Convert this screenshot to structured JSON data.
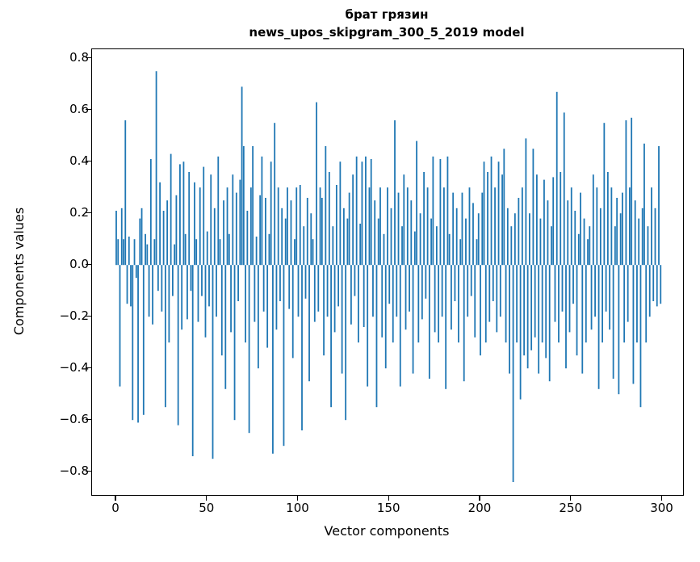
{
  "figure": {
    "title_line1": "брат грязин",
    "title_line2": "news_upos_skipgram_300_5_2019 model",
    "xlabel": "Vector components",
    "ylabel": "Components values",
    "bar_color": "#1f77b4",
    "background": "#ffffff"
  },
  "chart_data": {
    "type": "bar",
    "title": "брат грязин — news_upos_skipgram_300_5_2019 model",
    "xlabel": "Vector components",
    "ylabel": "Components values",
    "grid": false,
    "legend": null,
    "n_components": 300,
    "xlim": [
      -13.3,
      311.3
    ],
    "ylim": [
      -0.89,
      0.835
    ],
    "x_ticks": [
      0,
      50,
      100,
      150,
      200,
      250,
      300
    ],
    "x_tick_labels": [
      "0",
      "50",
      "100",
      "150",
      "200",
      "250",
      "300"
    ],
    "y_ticks": [
      0.8,
      0.6,
      0.4,
      0.2,
      0.0,
      -0.2,
      -0.4,
      -0.6,
      -0.8
    ],
    "y_tick_labels": [
      "0.8",
      "0.6",
      "0.4",
      "0.2",
      "0.0",
      "−0.2",
      "−0.4",
      "−0.6",
      "−0.8"
    ],
    "values": [
      0.21,
      0.1,
      -0.47,
      0.22,
      0.1,
      0.56,
      -0.15,
      0.11,
      -0.16,
      -0.6,
      0.1,
      -0.05,
      -0.61,
      0.18,
      0.22,
      -0.58,
      0.12,
      0.08,
      -0.2,
      0.41,
      -0.23,
      0.1,
      0.75,
      -0.1,
      0.32,
      -0.18,
      0.21,
      -0.55,
      0.25,
      -0.3,
      0.43,
      -0.12,
      0.08,
      0.27,
      -0.62,
      0.39,
      -0.25,
      0.4,
      0.12,
      -0.21,
      0.36,
      -0.1,
      -0.74,
      0.32,
      0.1,
      -0.22,
      0.3,
      -0.12,
      0.38,
      -0.28,
      0.13,
      -0.16,
      0.35,
      -0.75,
      0.22,
      -0.2,
      0.42,
      0.1,
      -0.35,
      0.25,
      -0.48,
      0.3,
      0.12,
      -0.26,
      0.35,
      -0.6,
      0.28,
      -0.14,
      0.33,
      0.69,
      0.46,
      -0.3,
      0.21,
      -0.65,
      0.3,
      0.46,
      -0.22,
      0.11,
      -0.4,
      0.27,
      0.42,
      -0.18,
      0.26,
      -0.32,
      0.12,
      0.4,
      -0.73,
      0.55,
      -0.25,
      0.3,
      -0.14,
      0.22,
      -0.7,
      0.18,
      0.3,
      -0.17,
      0.25,
      -0.36,
      0.1,
      0.3,
      -0.2,
      0.31,
      -0.64,
      0.15,
      -0.13,
      0.26,
      -0.45,
      0.2,
      0.1,
      -0.22,
      0.63,
      -0.18,
      0.3,
      0.26,
      -0.35,
      0.46,
      -0.2,
      0.36,
      -0.55,
      0.15,
      -0.26,
      0.31,
      -0.16,
      0.4,
      -0.42,
      0.22,
      -0.6,
      0.18,
      0.28,
      -0.23,
      0.35,
      -0.12,
      0.42,
      -0.3,
      0.16,
      0.4,
      -0.24,
      0.42,
      -0.47,
      0.3,
      0.41,
      -0.2,
      0.25,
      -0.55,
      0.18,
      0.3,
      -0.28,
      0.12,
      -0.4,
      0.3,
      -0.15,
      0.22,
      -0.3,
      0.56,
      -0.2,
      0.28,
      -0.47,
      0.15,
      0.35,
      -0.25,
      0.3,
      -0.18,
      0.25,
      -0.42,
      0.13,
      0.48,
      -0.3,
      0.2,
      -0.21,
      0.36,
      -0.13,
      0.3,
      -0.44,
      0.18,
      0.42,
      -0.26,
      0.15,
      -0.3,
      0.41,
      -0.2,
      0.3,
      -0.48,
      0.42,
      0.12,
      -0.25,
      0.28,
      -0.14,
      0.22,
      -0.3,
      0.1,
      0.28,
      -0.45,
      0.18,
      -0.2,
      0.3,
      -0.12,
      0.24,
      -0.28,
      0.1,
      0.2,
      -0.35,
      0.28,
      0.4,
      -0.3,
      0.36,
      -0.22,
      0.42,
      -0.14,
      0.3,
      -0.26,
      0.4,
      -0.2,
      0.35,
      0.45,
      -0.3,
      0.22,
      -0.42,
      0.15,
      -0.84,
      0.2,
      -0.3,
      0.26,
      -0.52,
      0.3,
      -0.35,
      0.49,
      -0.4,
      0.2,
      -0.33,
      0.45,
      -0.28,
      0.35,
      -0.42,
      0.18,
      -0.3,
      0.33,
      -0.36,
      0.25,
      -0.45,
      0.15,
      0.34,
      -0.22,
      0.67,
      -0.3,
      0.36,
      -0.18,
      0.59,
      -0.4,
      0.25,
      -0.26,
      0.3,
      -0.15,
      0.21,
      -0.35,
      0.12,
      0.28,
      -0.42,
      0.18,
      -0.3,
      0.1,
      0.15,
      -0.25,
      0.35,
      -0.2,
      0.3,
      -0.48,
      0.22,
      -0.3,
      0.55,
      -0.18,
      0.36,
      -0.25,
      0.3,
      -0.44,
      0.15,
      0.26,
      -0.5,
      0.2,
      0.28,
      -0.3,
      0.56,
      -0.22,
      0.3,
      0.57,
      -0.46,
      0.25,
      -0.3,
      0.18,
      -0.55,
      0.22,
      0.47,
      -0.3,
      0.15,
      -0.2,
      0.3,
      -0.14,
      0.22,
      -0.16,
      0.46,
      -0.15
    ]
  }
}
